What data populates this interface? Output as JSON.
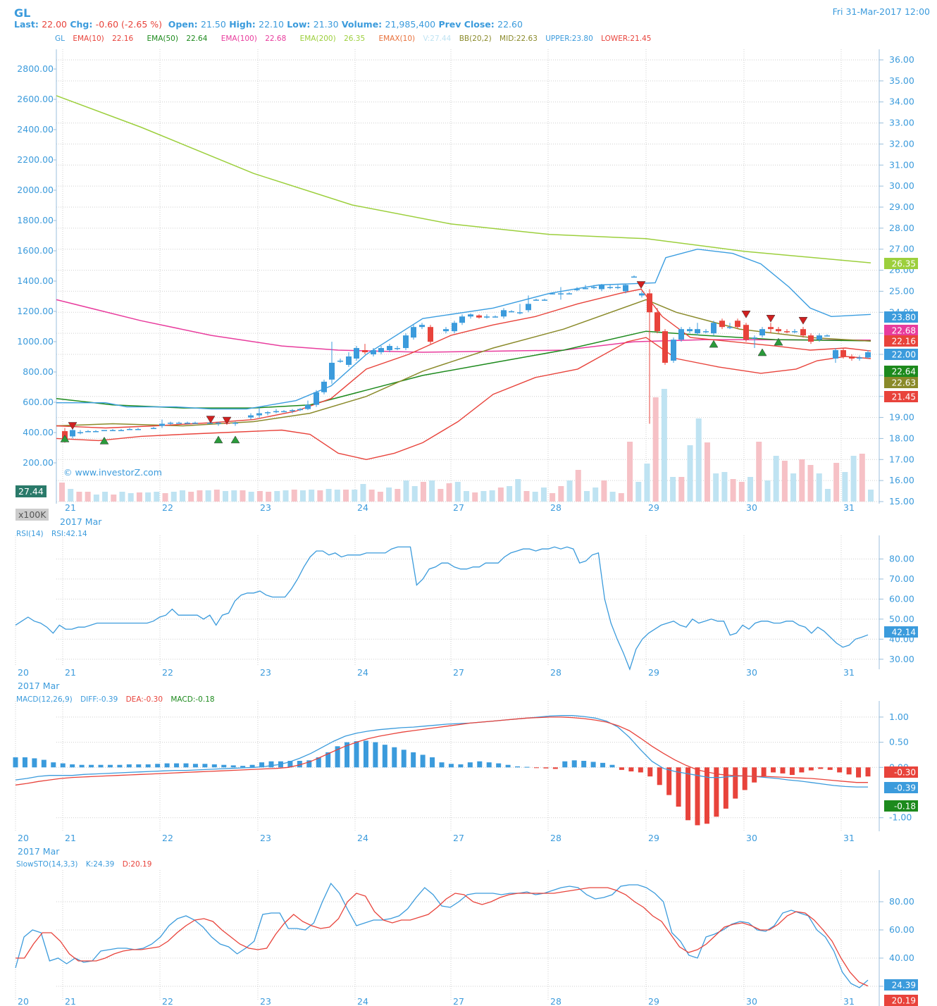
{
  "header": {
    "symbol": "GL",
    "last_label": "Last:",
    "last": "22.00",
    "chg_label": "Chg:",
    "chg": "-0.60 (-2.65 %)",
    "open_label": "Open:",
    "open": "21.50",
    "high_label": "High:",
    "high": "22.10",
    "low_label": "Low:",
    "low": "21.30",
    "volume_label": "Volume:",
    "volume": "21,985,400",
    "prev_label": "Prev Close:",
    "prev": "22.60",
    "datetime": "Fri 31-Mar-2017 12:00"
  },
  "legend": {
    "sym": "GL",
    "ema10": "EMA(10)",
    "ema10_v": "22.16",
    "ema50": "EMA(50)",
    "ema50_v": "22.64",
    "ema100": "EMA(100)",
    "ema100_v": "22.68",
    "ema200": "EMA(200)",
    "ema200_v": "26.35",
    "emax": "EMAX(10)",
    "vol": "V:27.44",
    "bb": "BB(20,2)",
    "mid": "MID:22.63",
    "upper": "UPPER:23.80",
    "lower": "LOWER:21.45"
  },
  "watermark": "© www.investorZ.com",
  "vol_scale": "x100K",
  "vol_last": "27.44",
  "month_label": "2017 Mar",
  "rsi_legend": {
    "name": "RSI(14)",
    "value": "RSI:42.14"
  },
  "macd_legend": {
    "name": "MACD(12,26,9)",
    "diff": "DIFF:-0.39",
    "dea": "DEA:-0.30",
    "macd": "MACD:-0.18"
  },
  "sto_legend": {
    "name": "SlowSTO(14,3,3)",
    "k": "K:24.39",
    "d": "D:20.19"
  },
  "colors": {
    "blue": "#3b9bdc",
    "red": "#e8433b",
    "green": "#1d8a1d",
    "pink": "#e83c9d",
    "lime": "#9ccf3c",
    "olive": "#8a8a2a",
    "bb": "#3a9de0",
    "volblue": "#bfe3f2",
    "volred": "#f6c1c6"
  },
  "chart_data": [
    {
      "type": "candlestick",
      "title": "GL",
      "x_ticks": [
        "21",
        "22",
        "23",
        "24",
        "27",
        "28",
        "29",
        "30",
        "31"
      ],
      "price_ticks": [
        "36.00",
        "35.00",
        "34.00",
        "33.00",
        "32.00",
        "31.00",
        "30.00",
        "29.00",
        "28.00",
        "27.00",
        "26.00",
        "25.00",
        "24.00",
        "23.00",
        "22.00",
        "21.00",
        "20.00",
        "19.00",
        "18.00",
        "17.00",
        "16.00",
        "15.00"
      ],
      "volume_ticks": [
        "2800.00",
        "2600.00",
        "2400.00",
        "2200.00",
        "2000.00",
        "1800.00",
        "1600.00",
        "1400.00",
        "1200.00",
        "1000.00",
        "800.00",
        "600.00",
        "400.00",
        "200.00"
      ],
      "ylim": [
        15,
        36
      ],
      "last_values": [
        {
          "label": "26.35",
          "color": "#9ccf3c"
        },
        {
          "label": "23.80",
          "color": "#3b9bdc"
        },
        {
          "label": "22.68",
          "color": "#e83c9d"
        },
        {
          "label": "22.16",
          "color": "#e8433b"
        },
        {
          "label": "22.00",
          "color": "#3b9bdc"
        },
        {
          "label": "22.64",
          "color": "#1d8a1d"
        },
        {
          "label": "22.63",
          "color": "#8a8a2a"
        },
        {
          "label": "21.45",
          "color": "#e8433b"
        }
      ]
    },
    {
      "type": "line",
      "title": "RSI(14)",
      "y_ticks": [
        "80.00",
        "70.00",
        "60.00",
        "50.00",
        "40.00",
        "30.00"
      ],
      "x_ticks": [
        "20",
        "21",
        "22",
        "23",
        "24",
        "27",
        "28",
        "29",
        "30",
        "31"
      ],
      "ylim": [
        25,
        90
      ],
      "series": [
        {
          "name": "RSI",
          "values": [
            47,
            49,
            51,
            49,
            48,
            46,
            43,
            47,
            45,
            45,
            46,
            46,
            47,
            48,
            48,
            48,
            48,
            48,
            48,
            48,
            48,
            48,
            49,
            51,
            52,
            55,
            52,
            52,
            52,
            52,
            50,
            52,
            47,
            52,
            53,
            59,
            62,
            63,
            63,
            64,
            62,
            61,
            61,
            61,
            65,
            70,
            76,
            81,
            84,
            84,
            82,
            83,
            81,
            82,
            82,
            82,
            83,
            83,
            83,
            83,
            85,
            86,
            86,
            86,
            67,
            70,
            75,
            76,
            78,
            78,
            76,
            75,
            75,
            76,
            76,
            78,
            78,
            78,
            81,
            83,
            84,
            85,
            85,
            84,
            85,
            85,
            86,
            85,
            86,
            85,
            78,
            79,
            82,
            83,
            60,
            48,
            40,
            33,
            25,
            35,
            40,
            43,
            45,
            47,
            48,
            49,
            47,
            46,
            50,
            48,
            49,
            50,
            49,
            49,
            42,
            43,
            47,
            45,
            48,
            49,
            49,
            48,
            48,
            49,
            49,
            47,
            46,
            43,
            46,
            44,
            41,
            38,
            36,
            37,
            40,
            41,
            42.14
          ]
        }
      ],
      "last_value": "42.14"
    },
    {
      "type": "bar+line",
      "title": "MACD(12,26,9)",
      "y_ticks": [
        "1.00",
        "0.50",
        "0.00",
        "-1.00"
      ],
      "x_ticks": [
        "20",
        "21",
        "22",
        "23",
        "24",
        "27",
        "28",
        "29",
        "30",
        "31"
      ],
      "ylim": [
        -1.2,
        1.25
      ],
      "series": [
        {
          "name": "DIFF",
          "values": [
            -0.25,
            -0.22,
            -0.18,
            -0.16,
            -0.16,
            -0.16,
            -0.14,
            -0.13,
            -0.12,
            -0.11,
            -0.1,
            -0.09,
            -0.08,
            -0.07,
            -0.06,
            -0.06,
            -0.05,
            -0.04,
            -0.03,
            -0.02,
            -0.01,
            0.0,
            0.02,
            0.05,
            0.1,
            0.18,
            0.28,
            0.4,
            0.52,
            0.62,
            0.68,
            0.72,
            0.75,
            0.77,
            0.79,
            0.8,
            0.82,
            0.84,
            0.86,
            0.87,
            0.88,
            0.9,
            0.92,
            0.94,
            0.96,
            0.98,
            1.0,
            1.02,
            1.03,
            1.03,
            1.01,
            0.98,
            0.92,
            0.8,
            0.6,
            0.35,
            0.12,
            -0.02,
            -0.08,
            -0.12,
            -0.16,
            -0.2,
            -0.2,
            -0.18,
            -0.17,
            -0.18,
            -0.2,
            -0.22,
            -0.25,
            -0.27,
            -0.3,
            -0.33,
            -0.36,
            -0.38,
            -0.39,
            -0.39
          ]
        },
        {
          "name": "DEA",
          "values": [
            -0.35,
            -0.32,
            -0.28,
            -0.25,
            -0.22,
            -0.2,
            -0.19,
            -0.18,
            -0.17,
            -0.16,
            -0.15,
            -0.14,
            -0.13,
            -0.12,
            -0.11,
            -0.1,
            -0.09,
            -0.08,
            -0.07,
            -0.06,
            -0.05,
            -0.04,
            -0.03,
            -0.02,
            0.0,
            0.05,
            0.12,
            0.22,
            0.32,
            0.42,
            0.5,
            0.57,
            0.62,
            0.66,
            0.7,
            0.73,
            0.76,
            0.79,
            0.82,
            0.85,
            0.88,
            0.9,
            0.92,
            0.94,
            0.96,
            0.98,
            0.99,
            1.0,
            1.0,
            0.99,
            0.97,
            0.94,
            0.9,
            0.83,
            0.73,
            0.58,
            0.42,
            0.28,
            0.15,
            0.04,
            -0.05,
            -0.1,
            -0.14,
            -0.16,
            -0.17,
            -0.18,
            -0.18,
            -0.19,
            -0.2,
            -0.21,
            -0.22,
            -0.24,
            -0.26,
            -0.28,
            -0.3,
            -0.3
          ]
        },
        {
          "name": "MACD",
          "values": [
            0.2,
            0.2,
            0.18,
            0.15,
            0.1,
            0.08,
            0.06,
            0.05,
            0.05,
            0.05,
            0.05,
            0.05,
            0.06,
            0.06,
            0.06,
            0.07,
            0.08,
            0.08,
            0.08,
            0.07,
            0.07,
            0.06,
            0.05,
            0.04,
            0.03,
            0.05,
            0.1,
            0.12,
            0.12,
            0.13,
            0.13,
            0.14,
            0.2,
            0.3,
            0.42,
            0.5,
            0.52,
            0.53,
            0.5,
            0.45,
            0.4,
            0.35,
            0.3,
            0.25,
            0.2,
            0.1,
            0.07,
            0.06,
            0.1,
            0.12,
            0.1,
            0.08,
            0.05,
            0.02,
            0.01,
            -0.01,
            -0.02,
            -0.03,
            0.12,
            0.14,
            0.13,
            0.11,
            0.09,
            0.05,
            -0.05,
            -0.08,
            -0.1,
            -0.18,
            -0.35,
            -0.55,
            -0.78,
            -1.05,
            -1.15,
            -1.12,
            -0.98,
            -0.82,
            -0.62,
            -0.45,
            -0.3,
            -0.18,
            -0.1,
            -0.12,
            -0.15,
            -0.1,
            -0.06,
            -0.03,
            -0.05,
            -0.1,
            -0.14,
            -0.2,
            -0.18
          ]
        }
      ],
      "last_values": [
        {
          "label": "-0.30",
          "color": "#e8433b"
        },
        {
          "label": "-0.39",
          "color": "#3b9bdc"
        },
        {
          "label": "-0.18",
          "color": "#1d8a1d"
        }
      ]
    },
    {
      "type": "line",
      "title": "SlowSTO(14,3,3)",
      "y_ticks": [
        "80.00",
        "60.00",
        "40.00",
        "20.00"
      ],
      "x_ticks": [
        "20",
        "21",
        "22",
        "23",
        "24",
        "27",
        "28",
        "29",
        "30",
        "31"
      ],
      "ylim": [
        15,
        100
      ],
      "series": [
        {
          "name": "K",
          "values": [
            33,
            55,
            60,
            58,
            38,
            40,
            36,
            40,
            37,
            38,
            45,
            46,
            47,
            47,
            46,
            47,
            50,
            55,
            63,
            68,
            70,
            67,
            62,
            55,
            50,
            48,
            43,
            47,
            52,
            71,
            72,
            72,
            61,
            61,
            60,
            65,
            80,
            93,
            86,
            74,
            63,
            65,
            67,
            67,
            68,
            70,
            75,
            83,
            90,
            85,
            77,
            76,
            80,
            85,
            86,
            86,
            86,
            85,
            86,
            86,
            87,
            85,
            86,
            88,
            90,
            91,
            90,
            85,
            82,
            83,
            85,
            91,
            92,
            92,
            90,
            86,
            80,
            58,
            52,
            42,
            40,
            55,
            57,
            60,
            64,
            66,
            65,
            60,
            59,
            63,
            72,
            74,
            72,
            70,
            60,
            55,
            45,
            30,
            22,
            19,
            24.39
          ]
        },
        {
          "name": "D",
          "values": [
            40,
            40,
            50,
            58,
            58,
            52,
            43,
            38,
            38,
            38,
            40,
            43,
            45,
            46,
            46,
            47,
            48,
            52,
            58,
            63,
            67,
            68,
            66,
            60,
            55,
            50,
            47,
            46,
            47,
            57,
            65,
            71,
            66,
            63,
            61,
            62,
            68,
            80,
            86,
            84,
            73,
            67,
            65,
            67,
            67,
            69,
            71,
            76,
            82,
            86,
            85,
            80,
            78,
            80,
            83,
            85,
            86,
            86,
            86,
            86,
            86,
            87,
            88,
            89,
            90,
            90,
            90,
            88,
            85,
            80,
            76,
            70,
            66,
            57,
            48,
            44,
            46,
            50,
            56,
            62,
            64,
            65,
            63,
            60,
            60,
            64,
            70,
            73,
            72,
            67,
            60,
            52,
            40,
            30,
            23,
            20.19
          ]
        }
      ],
      "last_values": [
        {
          "label": "24.39",
          "color": "#3b9bdc"
        },
        {
          "label": "20.19",
          "color": "#e8433b"
        }
      ]
    }
  ]
}
